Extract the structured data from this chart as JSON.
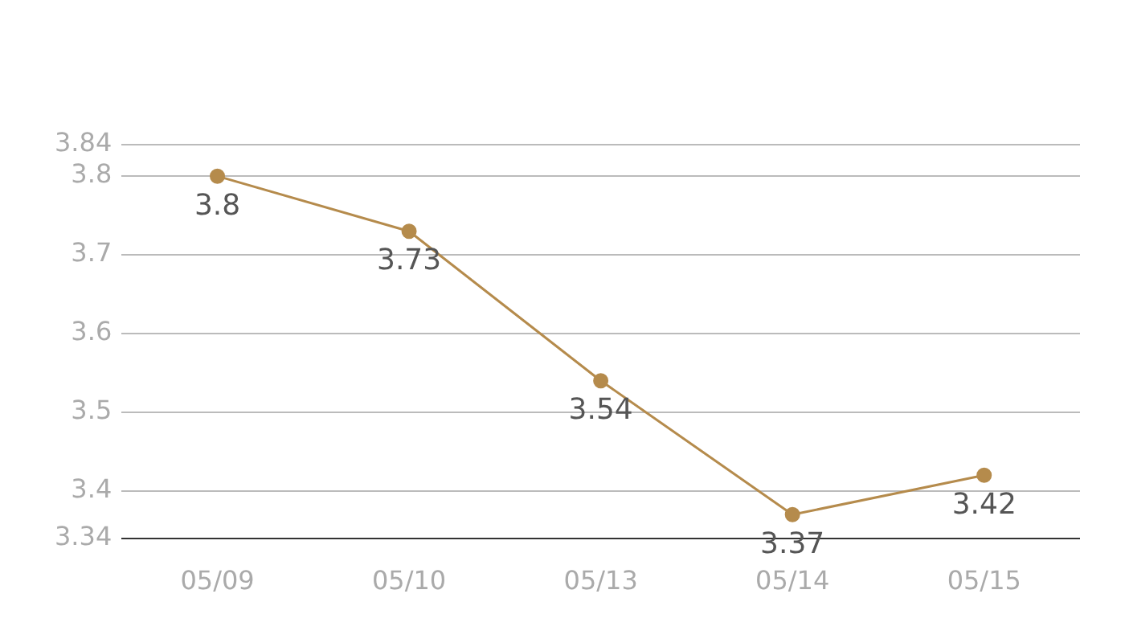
{
  "chart_data": {
    "type": "line",
    "categories": [
      "05/09",
      "05/10",
      "05/13",
      "05/14",
      "05/15"
    ],
    "series": [
      {
        "color": "#b58b4c",
        "values": [
          3.8,
          3.73,
          3.54,
          3.37,
          3.42
        ]
      }
    ],
    "ylim": [
      3.34,
      3.84
    ],
    "yticks": [
      3.34,
      3.4,
      3.5,
      3.6,
      3.7,
      3.8,
      3.84
    ],
    "grid": "y",
    "legend": false,
    "marker": "circle",
    "line_style": "solid",
    "data_labels": true
  }
}
